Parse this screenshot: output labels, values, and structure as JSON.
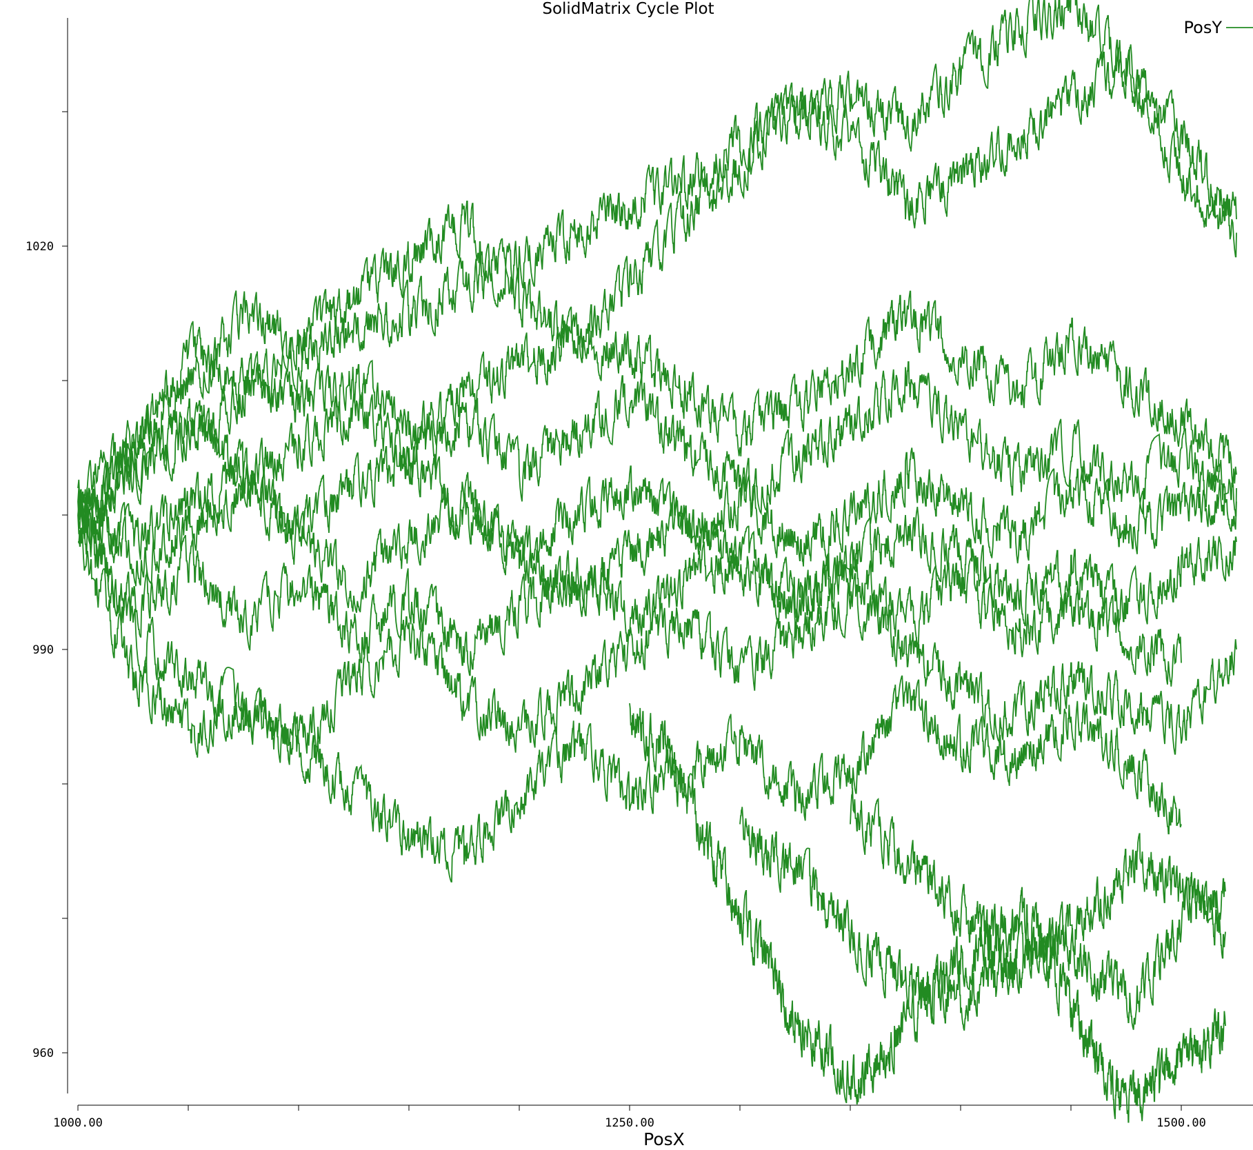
{
  "chart_data": {
    "type": "line",
    "title": "SolidMatrix Cycle Plot",
    "xlabel": "PosX",
    "ylabel": "",
    "xlim": [
      995,
      1535
    ],
    "ylim": [
      956,
      1038
    ],
    "x_ticks": [
      1000,
      1050,
      1100,
      1150,
      1200,
      1250,
      1300,
      1350,
      1400,
      1450,
      1500
    ],
    "x_tick_labels": [
      "1000.00",
      "",
      "",
      "",
      "",
      "1250.00",
      "",
      "",
      "",
      "",
      "1500.00"
    ],
    "y_ticks": [
      960,
      970,
      980,
      990,
      1000,
      1010,
      1020,
      1030
    ],
    "y_tick_labels": [
      "960",
      "",
      "",
      "990",
      "",
      "",
      "1020",
      ""
    ],
    "grid": false,
    "legend_position": "top-right",
    "series": [
      {
        "name": "PosY",
        "color": "#228b22",
        "traces": [
          {
            "x": [
              1000,
              1025,
              1050,
              1075,
              1100,
              1125,
              1150,
              1175,
              1200,
              1225,
              1250,
              1275,
              1300,
              1325,
              1350,
              1375,
              1400,
              1425,
              1450,
              1475,
              1500,
              1525
            ],
            "y": [
              1001,
              1003,
              1006,
              1009,
              1012,
              1014,
              1015,
              1017,
              1019,
              1021,
              1023,
              1025,
              1028,
              1030,
              1031,
              1029,
              1033,
              1036,
              1038,
              1033,
              1025,
              1021
            ]
          },
          {
            "x": [
              1000,
              1025,
              1050,
              1075,
              1100,
              1125,
              1150,
              1175,
              1200,
              1225,
              1250,
              1275,
              1300,
              1325,
              1350,
              1375,
              1400,
              1425,
              1450,
              1475,
              1500,
              1525
            ],
            "y": [
              1001,
              1006,
              1010,
              1015,
              1013,
              1016,
              1019,
              1022,
              1016,
              1013,
              1017,
              1022,
              1026,
              1030,
              1028,
              1023,
              1025,
              1028,
              1031,
              1033,
              1028,
              1022
            ]
          },
          {
            "x": [
              1000,
              1025,
              1050,
              1075,
              1100,
              1125,
              1150,
              1175,
              1200,
              1225,
              1250,
              1275,
              1300,
              1325,
              1350,
              1375,
              1400,
              1425,
              1450,
              1475,
              1500,
              1525
            ],
            "y": [
              999,
              1005,
              1012,
              1010,
              1008,
              1010,
              1006,
              1009,
              1011,
              1013,
              1012,
              1009,
              1006,
              1008,
              1011,
              1015,
              1012,
              1009,
              1013,
              1010,
              1007,
              1003
            ]
          },
          {
            "x": [
              1000,
              1025,
              1050,
              1075,
              1100,
              1125,
              1150,
              1175,
              1200,
              1225,
              1250,
              1275,
              1300,
              1325,
              1350,
              1375,
              1400,
              1425,
              1450,
              1475,
              1500,
              1525
            ],
            "y": [
              1000,
              1004,
              1007,
              1003,
              1005,
              1008,
              1004,
              1007,
              1003,
              1006,
              1009,
              1005,
              1002,
              1004,
              1007,
              1010,
              1006,
              1003,
              1005,
              1002,
              1004,
              1001
            ]
          },
          {
            "x": [
              1000,
              1025,
              1050,
              1075,
              1100,
              1125,
              1150,
              1175,
              1200,
              1225,
              1250,
              1275,
              1300,
              1325,
              1350,
              1375,
              1400,
              1425,
              1450,
              1475,
              1500,
              1525
            ],
            "y": [
              1000,
              998,
              1001,
              1003,
              999,
              1002,
              1004,
              1000,
              997,
              1000,
              1002,
              999,
              1001,
              998,
              1000,
              1003,
              1001,
              998,
              1002,
              999,
              1000,
              1002
            ]
          },
          {
            "x": [
              1000,
              1025,
              1050,
              1075,
              1100,
              1125,
              1150,
              1175,
              1200,
              1225,
              1250,
              1275,
              1300,
              1325,
              1350,
              1375,
              1400,
              1425,
              1450,
              1475,
              1500,
              1525
            ],
            "y": [
              1001,
              997,
              999,
              1002,
              998,
              995,
              998,
              1001,
              997,
              994,
              997,
              999,
              996,
              994,
              996,
              999,
              997,
              994,
              996,
              993,
              996,
              998
            ]
          },
          {
            "x": [
              1000,
              1025,
              1050,
              1075,
              1100,
              1125,
              1150,
              1175,
              1200,
              1225,
              1250,
              1275,
              1300,
              1325,
              1350,
              1375,
              1400,
              1425,
              1450,
              1475,
              1500
            ],
            "y": [
              999,
              993,
              996,
              992,
              995,
              991,
              994,
              990,
              993,
              996,
              992,
              995,
              997,
              993,
              996,
              992,
              995,
              991,
              993,
              991,
              989
            ]
          },
          {
            "x": [
              1000,
              1025,
              1050,
              1075,
              1100,
              1125,
              1150,
              1175,
              1200,
              1225,
              1250,
              1275,
              1300,
              1325,
              1350,
              1375,
              1400,
              1425,
              1450,
              1475,
              1500,
              1525
            ],
            "y": [
              998,
              988,
              984,
              986,
              983,
              988,
              991,
              986,
              984,
              987,
              990,
              992,
              988,
              991,
              994,
              990,
              987,
              985,
              988,
              986,
              984,
              990
            ]
          },
          {
            "x": [
              1000,
              1025,
              1050,
              1075,
              1100,
              1125,
              1150,
              1175,
              1200,
              1225,
              1250,
              1275,
              1300,
              1325,
              1350,
              1375,
              1400,
              1425,
              1450,
              1475,
              1500
            ],
            "y": [
              1000,
              991,
              988,
              985,
              983,
              979,
              976,
              975,
              979,
              983,
              979,
              981,
              983,
              979,
              981,
              986,
              983,
              982,
              985,
              982,
              977
            ]
          },
          {
            "x": [
              1250,
              1265,
              1280,
              1295,
              1310,
              1325,
              1340,
              1355,
              1370,
              1385,
              1400,
              1415,
              1430,
              1445,
              1460,
              1475,
              1490,
              1505,
              1520
            ],
            "y": [
              985,
              983,
              977,
              972,
              967,
              962,
              960,
              958,
              961,
              964,
              967,
              969,
              970,
              965,
              960,
              956,
              958,
              960,
              962
            ]
          },
          {
            "x": [
              1300,
              1320,
              1340,
              1360,
              1380,
              1400,
              1420,
              1440,
              1460,
              1480,
              1500,
              1520
            ],
            "y": [
              976,
              974,
              971,
              967,
              965,
              964,
              966,
              969,
              966,
              964,
              970,
              972
            ]
          },
          {
            "x": [
              1350,
              1370,
              1390,
              1410,
              1420,
              1440,
              1460,
              1480,
              1500,
              1520
            ],
            "y": [
              978,
              975,
              972,
              969,
              966,
              968,
              971,
              974,
              972,
              969
            ]
          }
        ]
      }
    ]
  }
}
